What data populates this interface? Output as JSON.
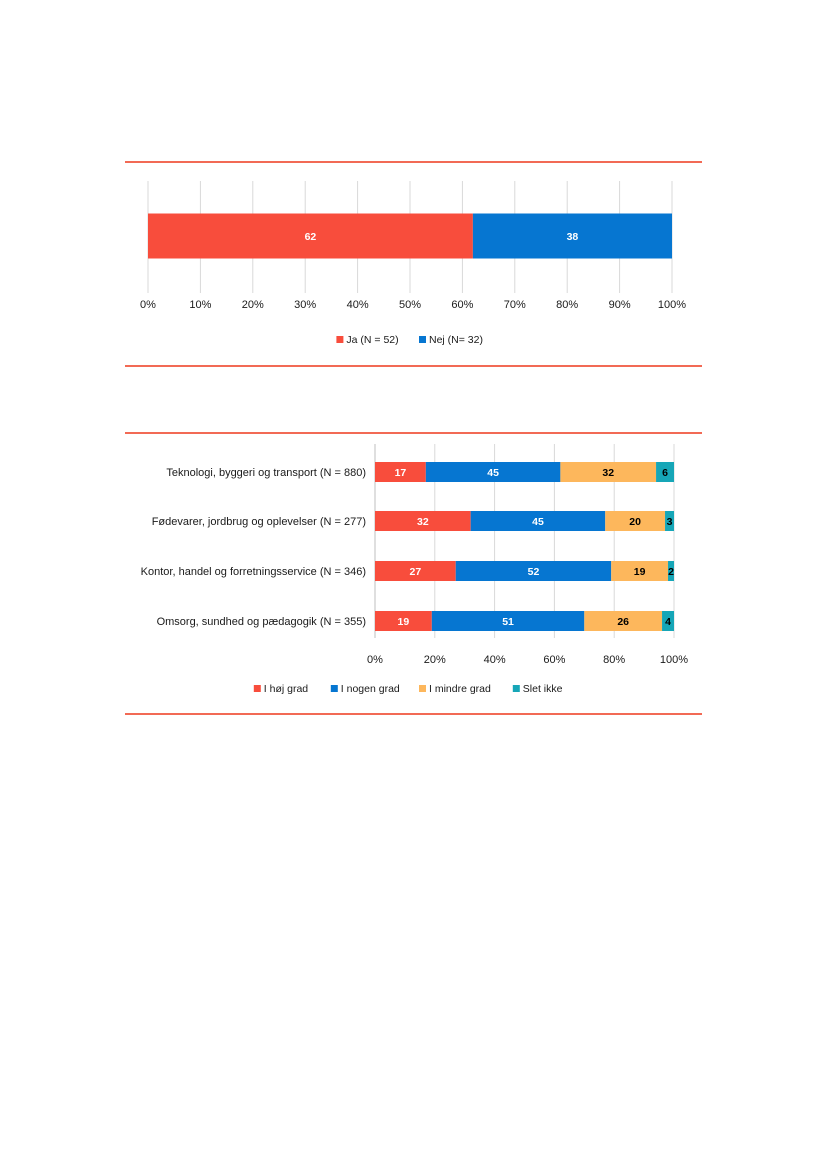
{
  "colors": {
    "rule": "#f26a55",
    "grid": "#d9d9d9",
    "red": "#f84d3c",
    "blue": "#0676d1",
    "orange": "#fdb75c",
    "teal": "#16a6b7"
  },
  "chart_data": [
    {
      "type": "bar",
      "orientation": "horizontal",
      "stacked": true,
      "xlim": [
        0,
        100
      ],
      "x_ticks": [
        "0%",
        "10%",
        "20%",
        "30%",
        "40%",
        "50%",
        "60%",
        "70%",
        "80%",
        "90%",
        "100%"
      ],
      "categories": [
        ""
      ],
      "series": [
        {
          "name": "Ja (N = 52)",
          "color": "#f84d3c",
          "values": [
            62
          ],
          "labels": [
            "62"
          ],
          "label_color": "#ffffff"
        },
        {
          "name": "Nej (N= 32)",
          "color": "#0676d1",
          "values": [
            38
          ],
          "labels": [
            "38"
          ],
          "label_color": "#ffffff"
        }
      ],
      "grid": true,
      "legend_position": "bottom"
    },
    {
      "type": "bar",
      "orientation": "horizontal",
      "stacked": true,
      "xlim": [
        0,
        100
      ],
      "x_ticks": [
        "0%",
        "20%",
        "40%",
        "60%",
        "80%",
        "100%"
      ],
      "categories": [
        "Teknologi, byggeri og transport (N = 880)",
        "Fødevarer, jordbrug og oplevelser (N = 277)",
        "Kontor, handel og forretningsservice (N = 346)",
        "Omsorg, sundhed og pædagogik (N = 355)"
      ],
      "series": [
        {
          "name": "I høj grad",
          "color": "#f84d3c",
          "values": [
            17,
            32,
            27,
            19
          ],
          "labels": [
            "17",
            "32",
            "27",
            "19"
          ],
          "label_color": "#ffffff"
        },
        {
          "name": "I nogen grad",
          "color": "#0676d1",
          "values": [
            45,
            45,
            52,
            51
          ],
          "labels": [
            "45",
            "45",
            "52",
            "51"
          ],
          "label_color": "#ffffff"
        },
        {
          "name": "I mindre grad",
          "color": "#fdb75c",
          "values": [
            32,
            20,
            19,
            26
          ],
          "labels": [
            "32",
            "20",
            "19",
            "26"
          ],
          "label_color": "#000000"
        },
        {
          "name": "Slet ikke",
          "color": "#16a6b7",
          "values": [
            6,
            3,
            2,
            4
          ],
          "labels": [
            "6",
            "3",
            "2",
            "4"
          ],
          "label_color": "#000000"
        }
      ],
      "grid": true,
      "legend_position": "bottom"
    }
  ]
}
